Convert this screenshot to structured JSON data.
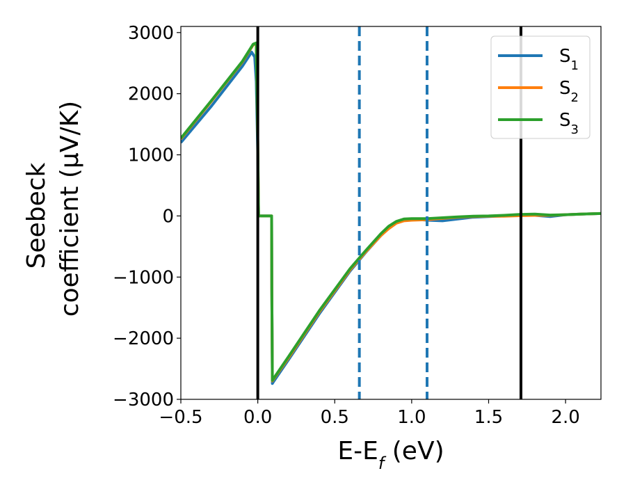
{
  "chart_data": {
    "type": "line",
    "xlabel": "E-E_f (eV)",
    "ylabel_line1": "Seebeck",
    "ylabel_line2": "coefficient  (μV/K)",
    "xlim": [
      -0.5,
      2.23
    ],
    "ylim": [
      -3000,
      3100
    ],
    "xticks": [
      -0.5,
      0.0,
      0.5,
      1.0,
      1.5,
      2.0
    ],
    "xtick_labels": [
      "−0.5",
      "0.0",
      "0.5",
      "1.0",
      "1.5",
      "2.0"
    ],
    "yticks": [
      -3000,
      -2000,
      -1000,
      0,
      1000,
      2000,
      3000
    ],
    "ytick_labels": [
      "−3000",
      "−2000",
      "−1000",
      "0",
      "1000",
      "2000",
      "3000"
    ],
    "grid": false,
    "legend_position": "top-right",
    "vertical_lines": [
      {
        "x": 0.0,
        "style": "solid",
        "color": "#000000"
      },
      {
        "x": 1.71,
        "style": "solid",
        "color": "#000000"
      },
      {
        "x": 0.66,
        "style": "dashed",
        "color": "#1f77b4"
      },
      {
        "x": 1.1,
        "style": "dashed",
        "color": "#1f77b4"
      }
    ],
    "series": [
      {
        "name": "S",
        "subscript": "1",
        "color": "#1f77b4",
        "x": [
          -0.5,
          -0.3,
          -0.1,
          -0.04,
          -0.02,
          -0.01,
          0.0,
          0.005,
          0.09,
          0.091,
          0.095,
          0.1,
          0.2,
          0.4,
          0.6,
          0.7,
          0.8,
          0.85,
          0.9,
          0.95,
          1.0,
          1.1,
          1.2,
          1.3,
          1.4,
          1.5,
          1.6,
          1.7,
          1.8,
          1.9,
          2.0,
          2.1,
          2.23
        ],
        "y": [
          1200,
          1800,
          2450,
          2680,
          2600,
          2200,
          1000,
          0,
          0,
          -1200,
          -2740,
          -2720,
          -2350,
          -1600,
          -900,
          -600,
          -320,
          -200,
          -100,
          -60,
          -50,
          -70,
          -80,
          -50,
          -20,
          -10,
          0,
          20,
          10,
          -10,
          20,
          30,
          40
        ]
      },
      {
        "name": "S",
        "subscript": "2",
        "color": "#ff7f0e",
        "x": [
          -0.5,
          -0.3,
          -0.1,
          -0.03,
          -0.01,
          0.0,
          0.005,
          0.09,
          0.091,
          0.095,
          0.1,
          0.2,
          0.4,
          0.6,
          0.7,
          0.8,
          0.85,
          0.9,
          0.95,
          1.0,
          1.1,
          1.2,
          1.3,
          1.4,
          1.5,
          1.6,
          1.7,
          1.8,
          1.9,
          2.0,
          2.1,
          2.23
        ],
        "y": [
          1260,
          1880,
          2520,
          2800,
          2820,
          1200,
          0,
          0,
          -1200,
          -2700,
          -2680,
          -2320,
          -1570,
          -880,
          -590,
          -320,
          -210,
          -120,
          -80,
          -70,
          -60,
          -40,
          -20,
          -10,
          -5,
          -5,
          5,
          10,
          10,
          20,
          30,
          40
        ]
      },
      {
        "name": "S",
        "subscript": "3",
        "color": "#2ca02c",
        "x": [
          -0.5,
          -0.3,
          -0.1,
          -0.03,
          -0.01,
          0.0,
          0.005,
          0.09,
          0.091,
          0.095,
          0.1,
          0.2,
          0.4,
          0.6,
          0.7,
          0.8,
          0.85,
          0.9,
          0.95,
          1.0,
          1.1,
          1.2,
          1.3,
          1.4,
          1.5,
          1.6,
          1.7,
          1.8,
          1.9,
          2.0,
          2.1,
          2.23
        ],
        "y": [
          1270,
          1890,
          2530,
          2810,
          2830,
          1200,
          0,
          0,
          -1200,
          -2690,
          -2670,
          -2300,
          -1550,
          -860,
          -570,
          -290,
          -170,
          -90,
          -50,
          -45,
          -45,
          -30,
          -15,
          -5,
          0,
          10,
          25,
          30,
          15,
          20,
          30,
          40
        ]
      }
    ]
  }
}
